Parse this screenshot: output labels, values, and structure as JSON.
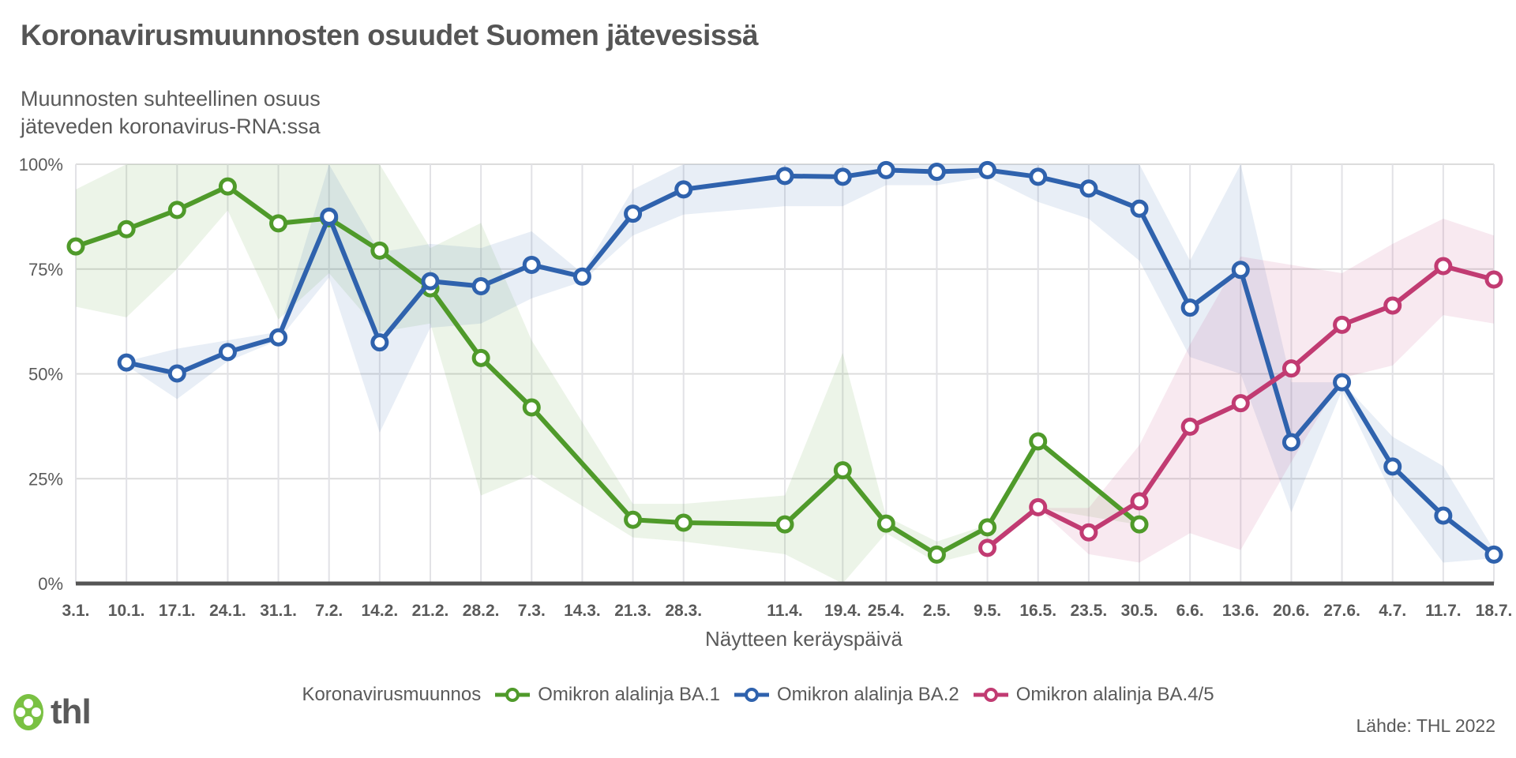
{
  "chart_data": {
    "type": "line",
    "title": "Koronavirusmuunnosten osuudet Suomen jätevesissä",
    "subtitle": [
      "Muunnosten suhteellinen osuus",
      "jäteveden koronavirus-RNA:ssa"
    ],
    "xlabel": "Näytteen keräyspäivä",
    "ylabel": "",
    "year": 2022,
    "ylim": [
      0,
      100
    ],
    "y_ticks": [
      "0%",
      "25%",
      "50%",
      "75%",
      "100%"
    ],
    "y_tick_values": [
      0,
      25,
      50,
      75,
      100
    ],
    "grid": true,
    "x": [
      "3.1.",
      "10.1.",
      "17.1.",
      "24.1.",
      "31.1.",
      "7.2.",
      "14.2.",
      "21.2.",
      "28.2.",
      "7.3.",
      "14.3.",
      "21.3.",
      "28.3.",
      "11.4.",
      "19.4.",
      "25.4.",
      "2.5.",
      "9.5.",
      "16.5.",
      "23.5.",
      "30.5.",
      "6.6.",
      "13.6.",
      "20.6.",
      "27.6.",
      "4.7.",
      "11.7.",
      "18.7."
    ],
    "legend_title": "Koronavirusmuunnos",
    "legend_position": "bottom",
    "series": [
      {
        "name": "Omikron alalinja BA.1",
        "color": "#4f9a2a",
        "band_color": "#e9f1e3",
        "values": [
          80.4,
          84.5,
          89.1,
          94.7,
          85.9,
          87.1,
          79.4,
          70.4,
          53.8,
          42.0,
          null,
          15.2,
          14.5,
          14.1,
          27.0,
          14.3,
          6.9,
          13.4,
          33.9,
          null,
          14.1,
          null,
          null,
          null,
          null,
          null,
          null,
          null
        ],
        "lower": [
          66,
          63.5,
          75,
          89,
          63,
          74,
          60,
          62,
          21,
          26,
          null,
          11,
          10,
          7,
          0,
          12,
          5,
          8,
          18,
          null,
          14,
          null,
          null,
          null,
          null,
          null,
          null,
          null
        ],
        "upper": [
          94,
          100,
          100,
          100,
          100,
          100,
          100,
          80,
          86,
          58,
          null,
          19,
          19,
          21,
          55,
          16,
          10,
          14,
          34,
          null,
          14,
          null,
          null,
          null,
          null,
          null,
          null,
          null
        ]
      },
      {
        "name": "Omikron alalinja BA.2",
        "color": "#2f62ad",
        "band_color": "#e6edf6",
        "values": [
          null,
          52.7,
          50.1,
          55.2,
          58.7,
          87.5,
          57.5,
          72.1,
          70.9,
          76.0,
          73.2,
          88.2,
          94.0,
          97.2,
          97.0,
          98.6,
          98.2,
          98.6,
          97.0,
          94.2,
          89.4,
          65.8,
          74.8,
          33.7,
          48.0,
          27.9,
          16.2,
          6.9
        ],
        "lower": [
          null,
          52,
          44,
          53,
          58,
          73,
          36,
          61,
          62,
          68,
          72,
          83,
          88,
          90,
          90,
          95,
          95,
          97,
          91,
          87,
          77,
          54,
          50,
          17,
          46,
          21,
          5,
          6
        ],
        "upper": [
          null,
          53,
          56,
          58,
          60,
          100,
          79,
          81,
          80,
          84,
          74,
          94,
          100,
          100,
          100,
          100,
          100,
          100,
          100,
          100,
          100,
          77,
          100,
          48,
          48,
          35,
          28,
          8
        ]
      },
      {
        "name": "Omikron alalinja BA.4/5",
        "color": "#c13b72",
        "band_color": "#f6e7ed",
        "values": [
          null,
          null,
          null,
          null,
          null,
          null,
          null,
          null,
          null,
          null,
          null,
          null,
          null,
          null,
          null,
          null,
          null,
          8.5,
          18.2,
          12.2,
          19.6,
          37.4,
          43.0,
          51.3,
          61.7,
          66.3,
          75.7,
          72.5
        ],
        "lower": [
          null,
          null,
          null,
          null,
          null,
          null,
          null,
          null,
          null,
          null,
          null,
          null,
          null,
          null,
          null,
          null,
          null,
          8.5,
          18,
          7,
          5,
          12,
          8,
          29,
          49,
          52,
          64,
          62
        ],
        "upper": [
          null,
          null,
          null,
          null,
          null,
          null,
          null,
          null,
          null,
          null,
          null,
          null,
          null,
          null,
          null,
          null,
          null,
          8.5,
          18,
          18,
          33,
          57,
          78,
          76,
          74,
          81,
          87,
          83
        ]
      }
    ]
  },
  "source": "Lähde: THL 2022",
  "logo": {
    "text": "thl",
    "icon": "clover-flower-icon"
  }
}
